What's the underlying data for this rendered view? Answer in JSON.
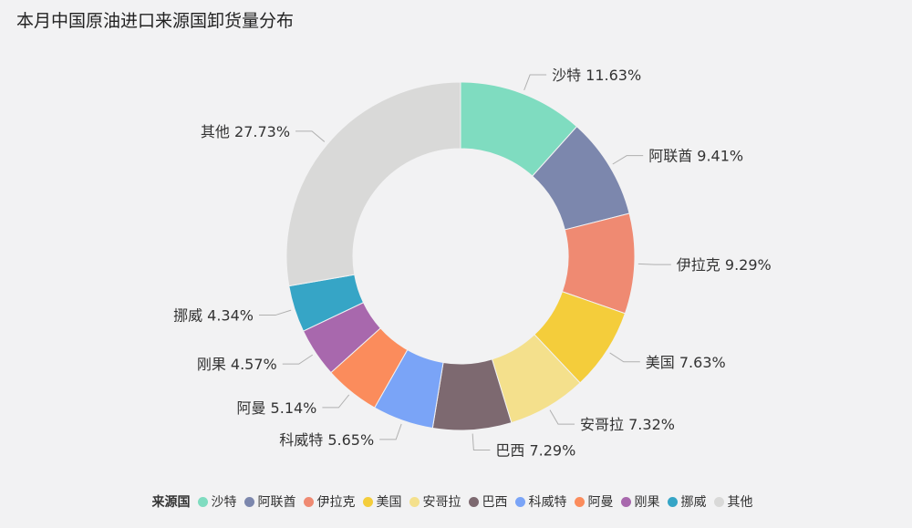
{
  "chart_data": {
    "type": "pie",
    "title": "本月中国原油进口来源国卸货量分布",
    "legend_title": "来源国",
    "legend_position": "bottom",
    "slices": [
      {
        "name": "沙特",
        "value": 11.63,
        "label": "11.63%",
        "color": "#7fdcc0"
      },
      {
        "name": "阿联酋",
        "value": 9.41,
        "label": "9.41%",
        "color": "#7c87ad"
      },
      {
        "name": "伊拉克",
        "value": 9.29,
        "label": "9.29%",
        "color": "#ef8a72"
      },
      {
        "name": "美国",
        "value": 7.63,
        "label": "7.63%",
        "color": "#f4cd3b"
      },
      {
        "name": "安哥拉",
        "value": 7.32,
        "label": "7.32%",
        "color": "#f4e08c"
      },
      {
        "name": "巴西",
        "value": 7.29,
        "label": "7.29%",
        "color": "#7d6970"
      },
      {
        "name": "科威特",
        "value": 5.65,
        "label": "5.65%",
        "color": "#7aa4f7"
      },
      {
        "name": "阿曼",
        "value": 5.14,
        "label": "5.14%",
        "color": "#fb8c5c"
      },
      {
        "name": "刚果",
        "value": 4.57,
        "label": "4.57%",
        "color": "#a868ad"
      },
      {
        "name": "挪威",
        "value": 4.34,
        "label": "4.34%",
        "color": "#36a5c6"
      },
      {
        "name": "其他",
        "value": 27.73,
        "label": "27.73%",
        "color": "#d9d9d8"
      }
    ]
  }
}
